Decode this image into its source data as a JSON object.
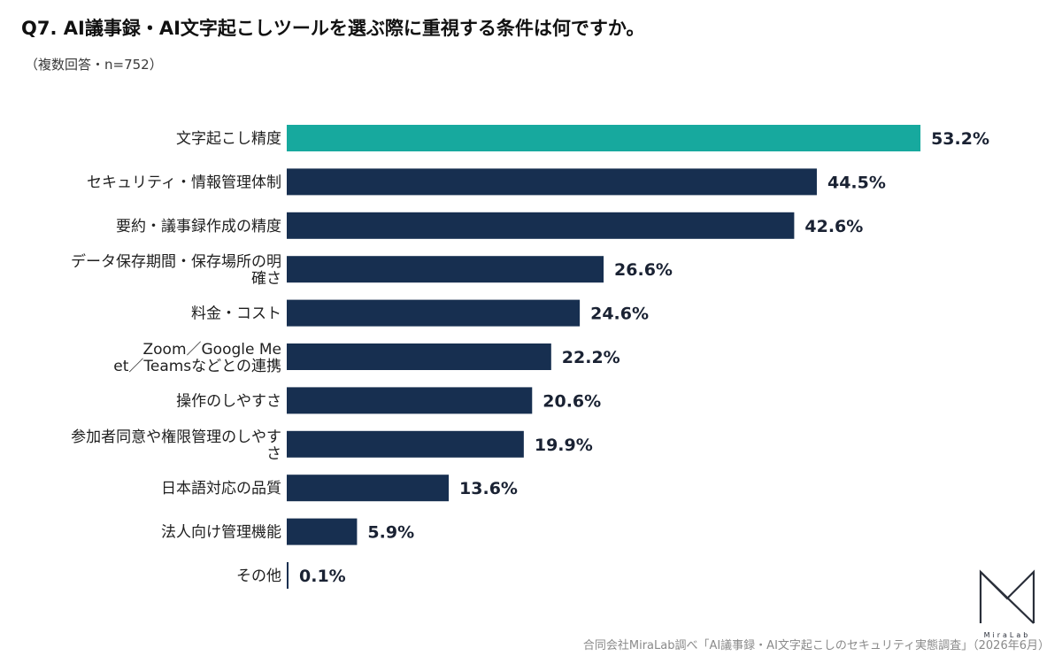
{
  "header": {
    "title": "Q7. AI議事録・AI文字起こしツールを選ぶ際に重視する条件は何ですか。",
    "subtitle": "（複数回答・n=752）"
  },
  "chart_data": {
    "type": "bar",
    "orientation": "horizontal",
    "categories": [
      "文字起こし精度",
      "セキュリティ・情報管理体制",
      "要約・議事録作成の精度",
      "データ保存期間・保存場所の明確さ",
      "料金・コスト",
      "Zoom／Google Meet／Teamsなどとの連携",
      "操作のしやすさ",
      "参加者同意や権限管理のしやすさ",
      "日本語対応の品質",
      "法人向け管理機能",
      "その他"
    ],
    "label_lines": [
      [
        "文字起こし精度"
      ],
      [
        "セキュリティ・情報管理体制"
      ],
      [
        "要約・議事録作成の精度"
      ],
      [
        "データ保存期間・保存場所の明",
        "確さ"
      ],
      [
        "料金・コスト"
      ],
      [
        "Zoom／Google Me",
        "et／Teamsなどとの連携"
      ],
      [
        "操作のしやすさ"
      ],
      [
        "参加者同意や権限管理のしやす",
        "さ"
      ],
      [
        "日本語対応の品質"
      ],
      [
        "法人向け管理機能"
      ],
      [
        "その他"
      ]
    ],
    "values": [
      53.2,
      44.5,
      42.6,
      26.6,
      24.6,
      22.2,
      20.6,
      19.9,
      13.6,
      5.9,
      0.1
    ],
    "value_labels": [
      "53.2%",
      "44.5%",
      "42.6%",
      "26.6%",
      "24.6%",
      "22.2%",
      "20.6%",
      "19.9%",
      "13.6%",
      "5.9%",
      "0.1%"
    ],
    "unit": "%",
    "highlight_index": 0,
    "colors": {
      "highlight": "#17a99e",
      "default": "#172f50",
      "text": "#1f1f1f"
    },
    "axis_visible": false,
    "grid": false,
    "legend": "none"
  },
  "logo": {
    "text": "MiraLab",
    "icon": "miralab-logo-icon"
  },
  "footer": {
    "source": "合同会社MiraLab調べ「AI議事録・AI文字起こしのセキュリティ実態調査」（2026年6月）"
  }
}
